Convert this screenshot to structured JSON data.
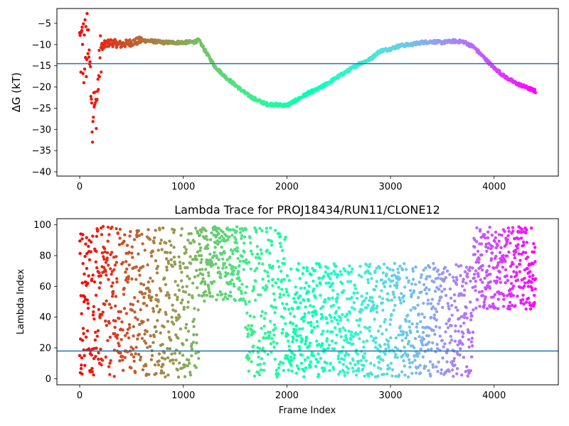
{
  "chart_data": [
    {
      "type": "scatter",
      "title": "",
      "xlabel": "",
      "ylabel": "ΔG (kT)",
      "xlim": [
        -220,
        4620
      ],
      "ylim": [
        -41,
        -1.5
      ],
      "xticks": [
        0,
        1000,
        2000,
        3000,
        4000
      ],
      "yticks": [
        -40,
        -35,
        -30,
        -25,
        -20,
        -15,
        -10,
        -5
      ],
      "hline": -14.5,
      "hline_color": "#1f77b4",
      "colormap": "rainbow (red at frame 0 → violet at final frame)",
      "series": [
        {
          "x": [
            0,
            40,
            80,
            120,
            160,
            200,
            240,
            300,
            400,
            500,
            600,
            700,
            800,
            900,
            1000,
            1100,
            1150,
            1200,
            1300,
            1400,
            1500,
            1600,
            1700,
            1800,
            1900,
            2000,
            2100,
            2200,
            2300,
            2400,
            2500,
            2600,
            2700,
            2800,
            2900,
            3000,
            3100,
            3200,
            3300,
            3400,
            3500,
            3600,
            3700,
            3800,
            3900,
            4000,
            4100,
            4200,
            4300,
            4400
          ],
          "y": [
            -10,
            -12,
            -11,
            -24,
            -25,
            -12,
            -10,
            -9.5,
            -10,
            -9.5,
            -9,
            -9.2,
            -9.5,
            -9.5,
            -9.5,
            -9.4,
            -9,
            -11,
            -15,
            -17.5,
            -19.5,
            -21.5,
            -23,
            -24,
            -24.2,
            -24.3,
            -23,
            -21.5,
            -20.5,
            -19,
            -17.5,
            -16,
            -14.5,
            -13.5,
            -11.5,
            -11,
            -10.2,
            -10,
            -9.5,
            -9.3,
            -9.5,
            -9.2,
            -9.3,
            -10.5,
            -13,
            -15.5,
            -17.5,
            -19,
            -20,
            -21
          ]
        }
      ]
    },
    {
      "type": "scatter",
      "title": "Lambda Trace for PROJ18434/RUN11/CLONE12",
      "xlabel": "Frame Index",
      "ylabel": "Lambda Index",
      "xlim": [
        -220,
        4620
      ],
      "ylim": [
        -4,
        104
      ],
      "xticks": [
        0,
        1000,
        2000,
        3000,
        4000
      ],
      "yticks": [
        0,
        20,
        40,
        60,
        80,
        100
      ],
      "hline": 18,
      "hline_color": "#1f77b4",
      "colormap": "rainbow (red at frame 0 → violet at final frame)",
      "density_profile": [
        {
          "x_range": [
            0,
            1150
          ],
          "lambda_range": [
            1,
            99
          ]
        },
        {
          "x_range": [
            1150,
            2000
          ],
          "lambda_range": [
            50,
            99
          ]
        },
        {
          "x_range": [
            1600,
            2000
          ],
          "lambda_range": [
            1,
            50
          ]
        },
        {
          "x_range": [
            2000,
            3800
          ],
          "lambda_range": [
            1,
            75
          ]
        },
        {
          "x_range": [
            3800,
            4400
          ],
          "lambda_range": [
            45,
            99
          ]
        }
      ]
    }
  ]
}
